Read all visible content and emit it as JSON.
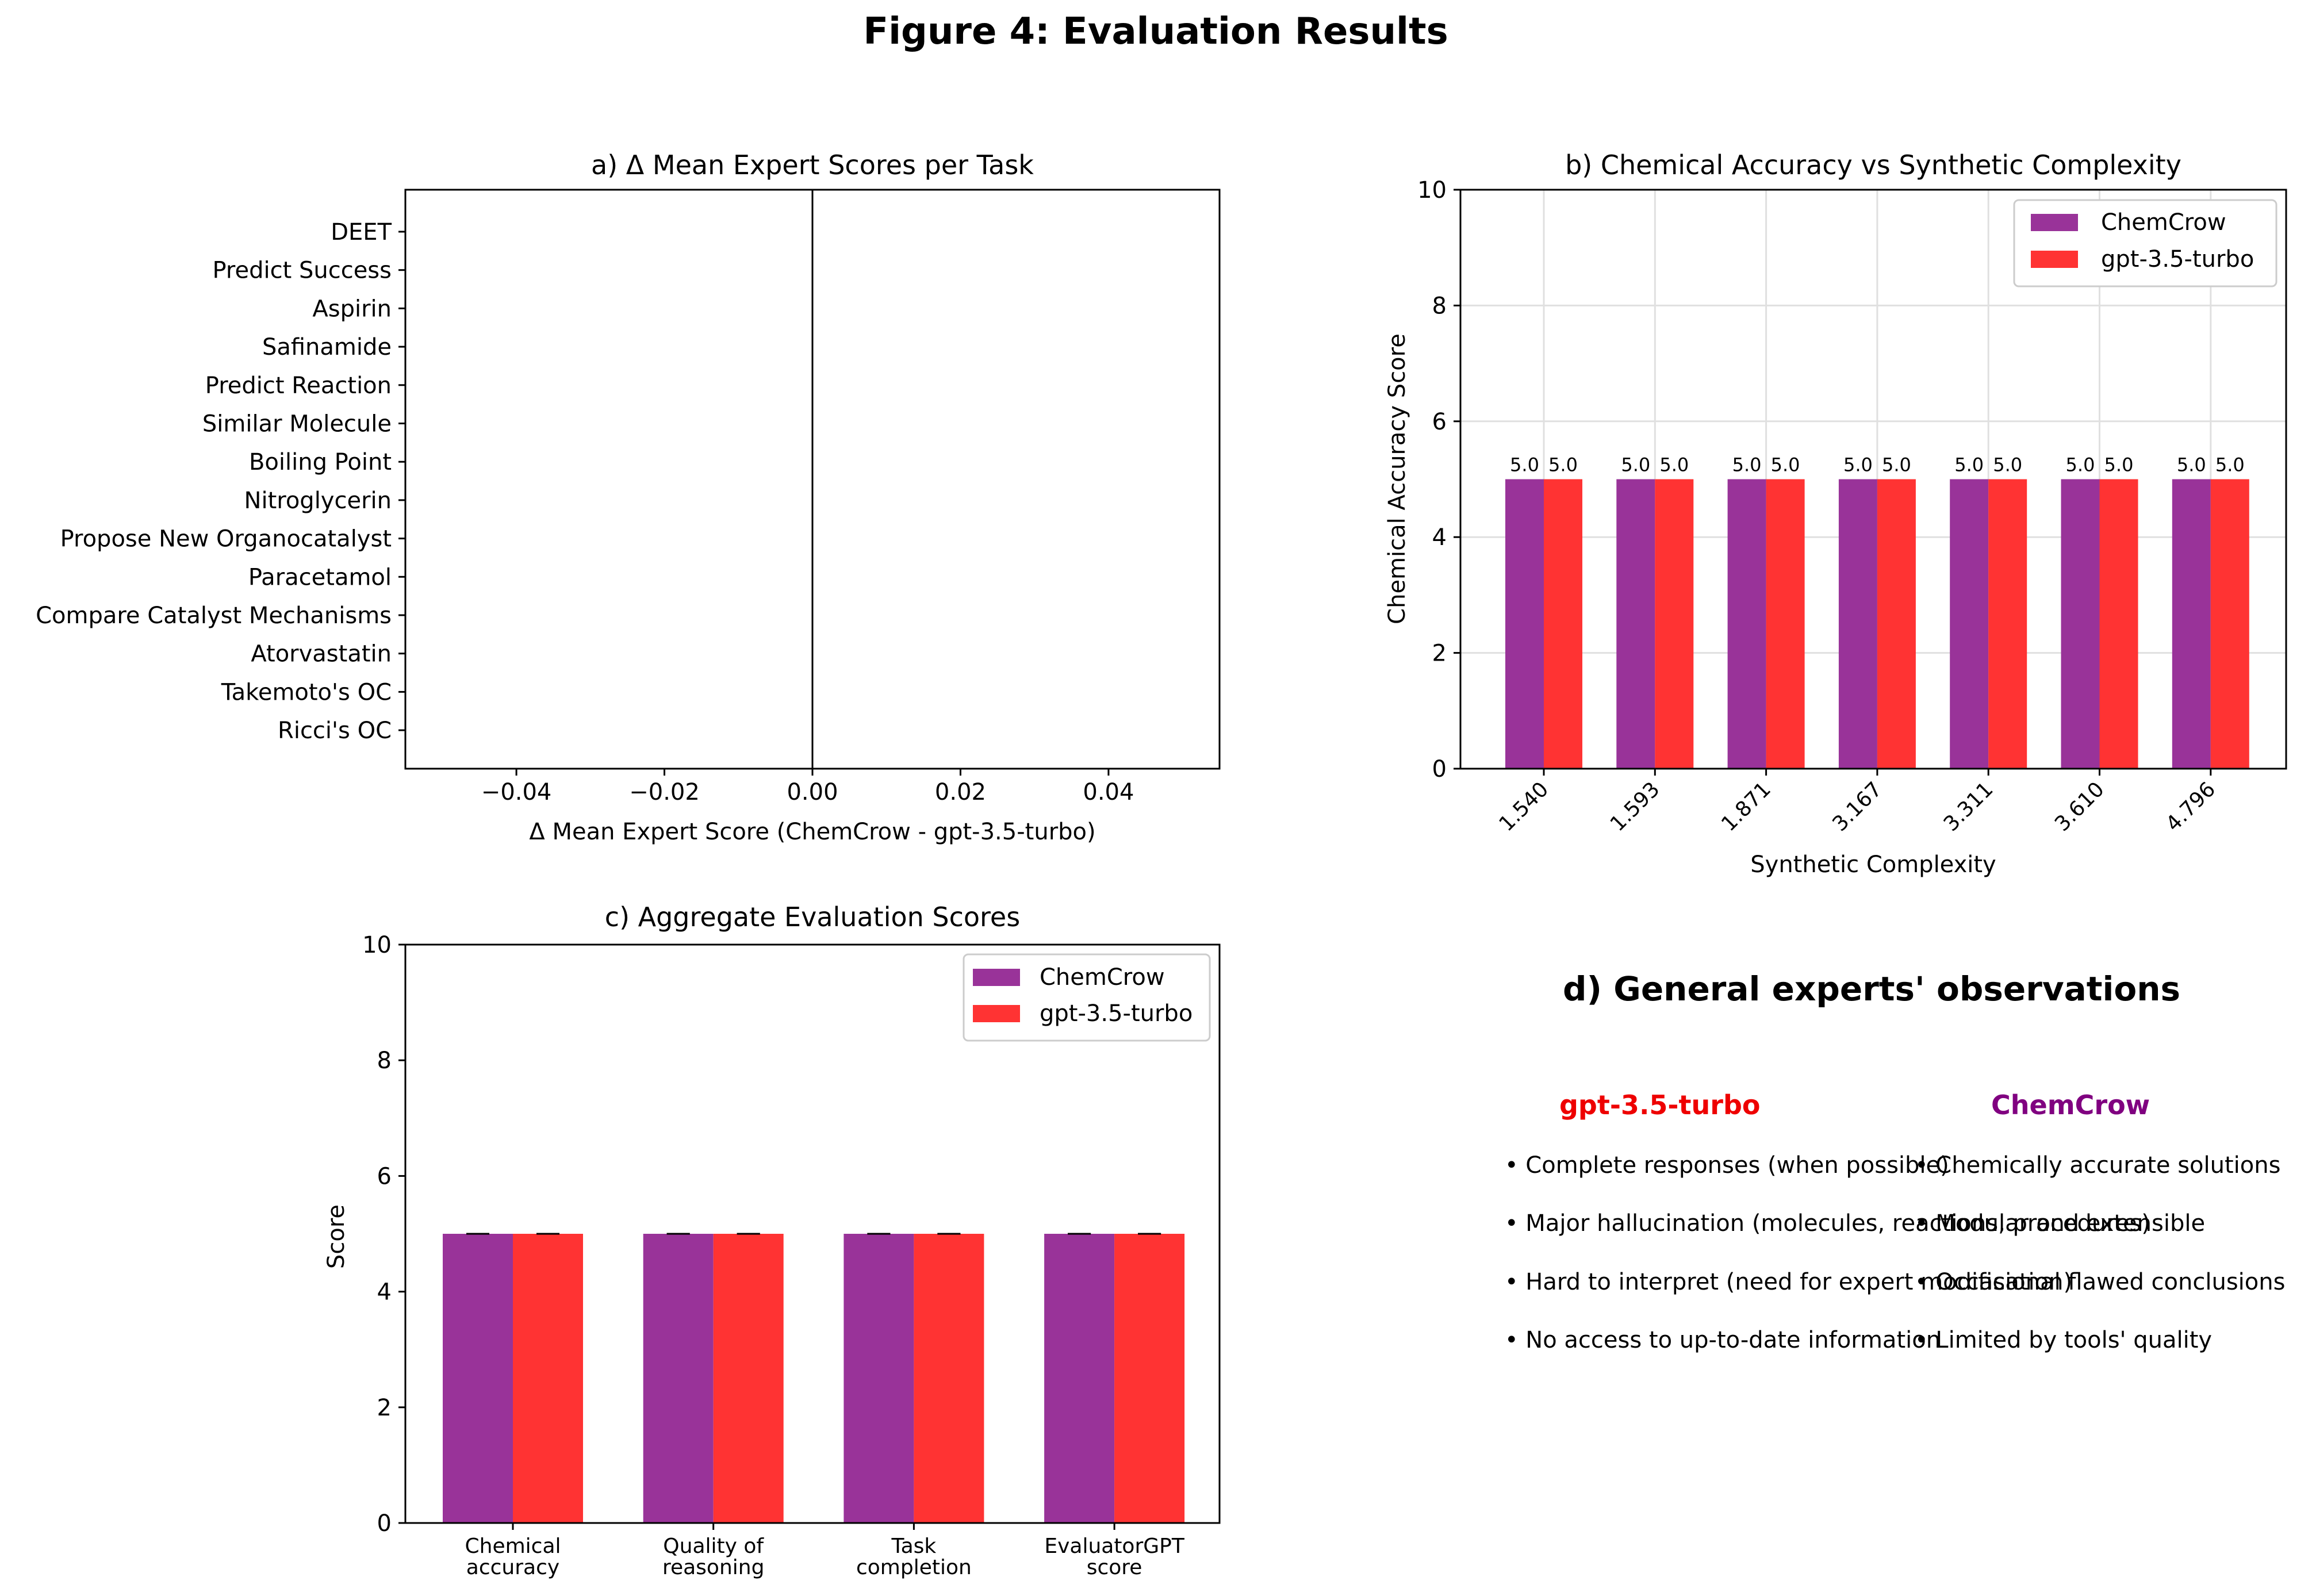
{
  "figure_title": "Figure 4: Evaluation Results",
  "colors": {
    "chemcrow": "#993399",
    "gpt": "#ff3333",
    "grid": "#e0e0e0",
    "gpt_title": "#ee0000",
    "chemcrow_title": "#800080"
  },
  "chart_data": [
    {
      "type": "bar",
      "orientation": "horizontal",
      "title": "a) Δ Mean Expert Scores per Task",
      "xlabel": "Δ Mean Expert Score (ChemCrow - gpt-3.5-turbo)",
      "ylabel": "",
      "xlim": [
        -0.055,
        0.055
      ],
      "x_ticks": [
        "−0.04",
        "−0.02",
        "0.00",
        "0.02",
        "0.04"
      ],
      "x_tick_values": [
        -0.04,
        -0.02,
        0.0,
        0.02,
        0.04
      ],
      "categories": [
        "DEET",
        "Predict Success",
        "Aspirin",
        "Safinamide",
        "Predict Reaction",
        "Similar Molecule",
        "Boiling Point",
        "Nitroglycerin",
        "Propose New Organocatalyst",
        "Paracetamol",
        "Compare Catalyst Mechanisms",
        "Atorvastatin",
        "Takemoto's OC",
        "Ricci's OC"
      ],
      "values": [
        0,
        0,
        0,
        0,
        0,
        0,
        0,
        0,
        0,
        0,
        0,
        0,
        0,
        0
      ],
      "zero_line": true,
      "grid": false
    },
    {
      "type": "bar",
      "title": "b) Chemical Accuracy vs Synthetic Complexity",
      "xlabel": "Synthetic Complexity",
      "ylabel": "Chemical Accuracy Score",
      "ylim": [
        0,
        10
      ],
      "y_ticks": [
        "0",
        "2",
        "4",
        "6",
        "8",
        "10"
      ],
      "y_tick_values": [
        0,
        2,
        4,
        6,
        8,
        10
      ],
      "categories": [
        "1.540",
        "1.593",
        "1.871",
        "3.167",
        "3.311",
        "3.610",
        "4.796"
      ],
      "series": [
        {
          "name": "ChemCrow",
          "values": [
            5.0,
            5.0,
            5.0,
            5.0,
            5.0,
            5.0,
            5.0
          ],
          "labels": [
            "5.0",
            "5.0",
            "5.0",
            "5.0",
            "5.0",
            "5.0",
            "5.0"
          ]
        },
        {
          "name": "gpt-3.5-turbo",
          "values": [
            5.0,
            5.0,
            5.0,
            5.0,
            5.0,
            5.0,
            5.0
          ],
          "labels": [
            "5.0",
            "5.0",
            "5.0",
            "5.0",
            "5.0",
            "5.0",
            "5.0"
          ]
        }
      ],
      "legend": "top-right",
      "grid": true
    },
    {
      "type": "bar",
      "title": "c) Aggregate Evaluation Scores",
      "xlabel": "",
      "ylabel": "Score",
      "ylim": [
        0,
        10
      ],
      "y_ticks": [
        "0",
        "2",
        "4",
        "6",
        "8",
        "10"
      ],
      "y_tick_values": [
        0,
        2,
        4,
        6,
        8,
        10
      ],
      "categories": [
        [
          "Chemical",
          "accuracy"
        ],
        [
          "Quality of",
          "reasoning"
        ],
        [
          "Task",
          "completion"
        ],
        [
          "EvaluatorGPT",
          "score"
        ]
      ],
      "series": [
        {
          "name": "ChemCrow",
          "values": [
            5.0,
            5.0,
            5.0,
            5.0
          ],
          "error": [
            0,
            0,
            0,
            0
          ]
        },
        {
          "name": "gpt-3.5-turbo",
          "values": [
            5.0,
            5.0,
            5.0,
            5.0
          ],
          "error": [
            0,
            0,
            0,
            0
          ]
        }
      ],
      "legend": "top-right",
      "grid": false
    }
  ],
  "observations": {
    "title": "d) General experts' observations",
    "gpt": {
      "heading": "gpt-3.5-turbo",
      "items": [
        "• Complete responses (when possible)",
        "• Major hallucination (molecules, reactions, procedures)",
        "• Hard to interpret (need for expert modification)",
        "• No access to up-to-date information"
      ]
    },
    "chemcrow": {
      "heading": "ChemCrow",
      "items": [
        "• Chemically accurate solutions",
        "• Modular and extensible",
        "• Occasional flawed conclusions",
        "• Limited by tools' quality"
      ]
    }
  }
}
